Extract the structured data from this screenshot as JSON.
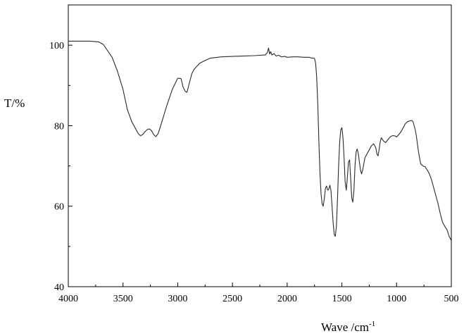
{
  "chart_data": {
    "type": "line",
    "title": "",
    "xlabel": "Wave /cm",
    "xlabel_superscript": "-1",
    "ylabel": "T/%",
    "xlim": [
      4000,
      500
    ],
    "ylim": [
      40,
      110
    ],
    "x_ticks": [
      4000,
      3500,
      3000,
      2500,
      2000,
      1500,
      1000,
      500
    ],
    "x_tick_labels": [
      "4000",
      "3500",
      "3000",
      "2500",
      "2000",
      "1500",
      "1000",
      "500"
    ],
    "y_ticks": [
      40,
      60,
      80,
      100
    ],
    "y_tick_labels": [
      "40",
      "60",
      "80",
      "100"
    ],
    "grid": false,
    "line_color": "#2a2a2a",
    "series": [
      {
        "x": [
          4000,
          3900,
          3800,
          3720,
          3680,
          3600,
          3550,
          3500,
          3460,
          3420,
          3390,
          3360,
          3340,
          3320,
          3300,
          3280,
          3260,
          3240,
          3220,
          3200,
          3180,
          3150,
          3100,
          3050,
          3000,
          2970,
          2950,
          2930,
          2915,
          2890,
          2870,
          2850,
          2800,
          2750,
          2700,
          2600,
          2500,
          2400,
          2300,
          2200,
          2180,
          2170,
          2160,
          2150,
          2140,
          2120,
          2100,
          2080,
          2050,
          2020,
          2000,
          1950,
          1900,
          1850,
          1800,
          1780,
          1760,
          1750,
          1740,
          1730,
          1720,
          1710,
          1700,
          1690,
          1680,
          1670,
          1660,
          1650,
          1640,
          1630,
          1620,
          1610,
          1600,
          1590,
          1580,
          1570,
          1560,
          1550,
          1540,
          1530,
          1520,
          1510,
          1500,
          1490,
          1480,
          1470,
          1460,
          1450,
          1440,
          1430,
          1420,
          1410,
          1400,
          1390,
          1380,
          1370,
          1360,
          1350,
          1340,
          1330,
          1320,
          1310,
          1300,
          1290,
          1270,
          1250,
          1230,
          1210,
          1190,
          1180,
          1170,
          1160,
          1150,
          1140,
          1120,
          1100,
          1080,
          1060,
          1040,
          1020,
          1000,
          980,
          960,
          940,
          920,
          900,
          880,
          860,
          850,
          840,
          830,
          820,
          810,
          800,
          790,
          780,
          760,
          740,
          720,
          700,
          680,
          660,
          640,
          620,
          600,
          580,
          560,
          540,
          520,
          500
        ],
        "y": [
          101.0,
          101.0,
          101.0,
          100.8,
          100.2,
          97.0,
          93.5,
          89.0,
          84.0,
          81.0,
          79.5,
          78.0,
          77.5,
          77.8,
          78.5,
          79.0,
          79.2,
          78.8,
          77.8,
          77.3,
          78.0,
          80.5,
          85.0,
          89.0,
          91.8,
          91.7,
          89.5,
          88.5,
          88.3,
          91.0,
          93.0,
          94.0,
          95.5,
          96.2,
          96.8,
          97.1,
          97.2,
          97.3,
          97.4,
          97.6,
          98.2,
          99.3,
          97.8,
          98.4,
          97.6,
          97.9,
          97.3,
          97.5,
          97.1,
          97.2,
          97.0,
          97.1,
          97.1,
          97.0,
          97.0,
          96.8,
          96.8,
          96.7,
          95.5,
          92.0,
          85.0,
          76.0,
          68.0,
          63.0,
          60.5,
          60.0,
          62.0,
          64.5,
          65.0,
          64.0,
          64.2,
          65.2,
          64.0,
          60.0,
          56.0,
          53.0,
          52.5,
          55.0,
          62.0,
          70.0,
          76.0,
          79.0,
          79.5,
          77.0,
          72.0,
          66.0,
          64.0,
          67.0,
          71.0,
          71.5,
          67.0,
          62.0,
          61.0,
          64.0,
          70.0,
          73.5,
          74.2,
          73.0,
          71.0,
          69.0,
          68.0,
          69.0,
          70.5,
          72.0,
          73.0,
          74.0,
          75.0,
          75.5,
          74.5,
          73.0,
          72.5,
          74.0,
          76.0,
          77.0,
          76.2,
          75.8,
          76.5,
          77.2,
          77.5,
          77.5,
          77.2,
          77.8,
          78.5,
          79.5,
          80.5,
          81.0,
          81.2,
          81.3,
          81.0,
          80.0,
          79.0,
          77.5,
          75.5,
          73.5,
          72.0,
          70.5,
          70.0,
          69.8,
          69.0,
          68.0,
          66.5,
          64.5,
          62.5,
          60.5,
          58.0,
          56.0,
          55.0,
          54.2,
          52.5,
          51.5
        ]
      }
    ]
  }
}
